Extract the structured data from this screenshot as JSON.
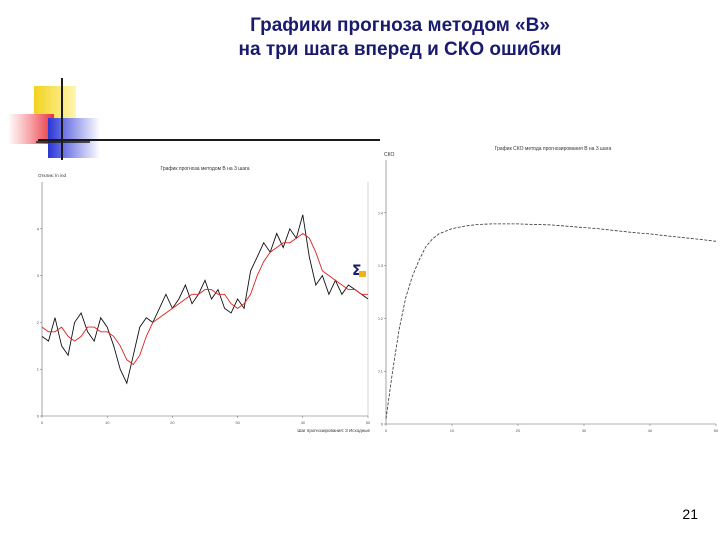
{
  "slide": {
    "title_line1": "Графики прогноза методом «B»",
    "title_line2": "на три шага вперед и СКО ошибки",
    "page_number": "21"
  },
  "colors": {
    "title": "#1b1b6e",
    "forecast_line": "#e02020",
    "actual_line": "#111111",
    "deco_yellow": "#f2d21e",
    "deco_red": "#e8323c",
    "deco_blue": "#2a36d6"
  },
  "icons": {
    "toolbar": "sigma-icon"
  },
  "chart_data": [
    {
      "type": "line",
      "title": "График прогноза методом B на 3 шага",
      "ylabel": "Отклик: ln ind",
      "xlabel": "Шаг прогнозирования: 3 Исходные",
      "xlim": [
        0,
        50
      ],
      "ylim": [
        0,
        5
      ],
      "x_ticks": [
        "0",
        "10",
        "20",
        "30",
        "40",
        "50"
      ],
      "y_ticks": [
        "0",
        "1",
        "2",
        "3",
        "4"
      ],
      "grid": false,
      "series": [
        {
          "values": [
            1.7,
            1.6,
            2.1,
            1.5,
            1.3,
            2.0,
            2.2,
            1.8,
            1.6,
            2.1,
            1.9,
            1.5,
            1.0,
            0.7,
            1.3,
            1.9,
            2.1,
            2.0,
            2.3,
            2.6,
            2.3,
            2.5,
            2.8,
            2.4,
            2.6,
            2.9,
            2.5,
            2.7,
            2.3,
            2.2,
            2.5,
            2.3,
            3.1,
            3.4,
            3.7,
            3.5,
            3.9,
            3.6,
            4.0,
            3.8,
            4.3,
            3.4,
            2.8,
            3.0,
            2.6,
            2.9,
            2.6,
            2.8,
            2.7,
            2.6,
            2.5
          ]
        },
        {
          "values": [
            1.9,
            1.8,
            1.8,
            1.9,
            1.7,
            1.6,
            1.7,
            1.9,
            1.9,
            1.8,
            1.8,
            1.7,
            1.5,
            1.2,
            1.1,
            1.3,
            1.7,
            2.0,
            2.1,
            2.2,
            2.3,
            2.4,
            2.5,
            2.6,
            2.6,
            2.7,
            2.7,
            2.6,
            2.6,
            2.4,
            2.3,
            2.4,
            2.6,
            3.0,
            3.3,
            3.5,
            3.6,
            3.7,
            3.7,
            3.8,
            3.9,
            3.8,
            3.5,
            3.1,
            3.0,
            2.9,
            2.8,
            2.7,
            2.7,
            2.6,
            2.6
          ]
        }
      ]
    },
    {
      "type": "line",
      "title": "График СКО метода прогнозирования B на 3 шага",
      "ylabel": "СКО",
      "xlim": [
        0,
        50
      ],
      "ylim": [
        0,
        0.5
      ],
      "x_ticks": [
        "0",
        "10",
        "20",
        "30",
        "40",
        "50"
      ],
      "y_ticks": [
        "0",
        "0.1",
        "0.2",
        "0.3",
        "0.4"
      ],
      "grid": false,
      "series": [
        {
          "x": [
            0,
            1,
            2,
            3,
            4,
            5,
            6,
            7,
            8,
            10,
            12,
            14,
            16,
            18,
            20,
            22,
            25,
            28,
            30,
            32,
            35,
            38,
            40,
            42,
            45,
            48,
            50
          ],
          "values": [
            0.01,
            0.1,
            0.18,
            0.24,
            0.28,
            0.31,
            0.335,
            0.35,
            0.36,
            0.37,
            0.375,
            0.378,
            0.379,
            0.379,
            0.379,
            0.378,
            0.377,
            0.374,
            0.372,
            0.37,
            0.366,
            0.362,
            0.36,
            0.357,
            0.353,
            0.349,
            0.346
          ]
        }
      ]
    }
  ]
}
